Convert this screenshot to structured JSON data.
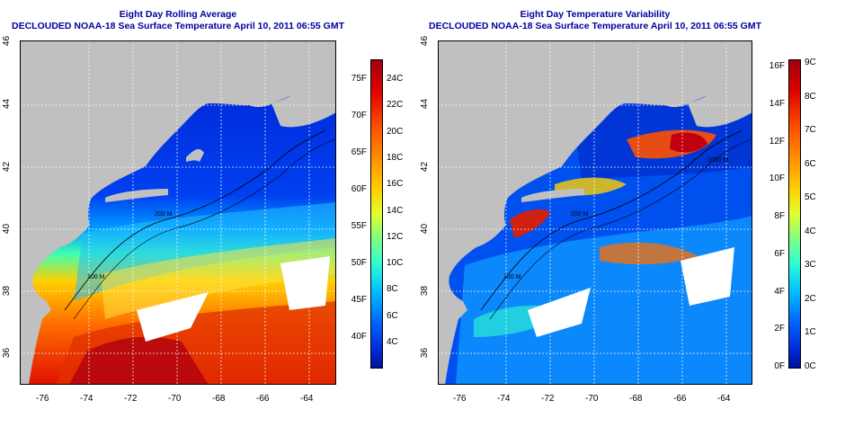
{
  "panels": [
    {
      "title": "Eight Day Rolling Average",
      "subtitle": "DECLOUDED NOAA-18 Sea Surface Temperature April 10, 2011 06:55 GMT",
      "colorbar": {
        "f_labels": [
          "75F",
          "70F",
          "65F",
          "60F",
          "55F",
          "50F",
          "45F",
          "40F"
        ],
        "c_labels": [
          "24C",
          "22C",
          "20C",
          "18C",
          "16C",
          "14C",
          "12C",
          "10C",
          "8C",
          "6C",
          "4C"
        ],
        "colors": [
          "#a00010",
          "#e00000",
          "#ff5000",
          "#ff9000",
          "#ffd000",
          "#e0ff30",
          "#80ff80",
          "#30ffd0",
          "#00c0ff",
          "#0070ff",
          "#0030e0",
          "#0010a0"
        ]
      }
    },
    {
      "title": "Eight Day Temperature Variability",
      "subtitle": "DECLOUDED NOAA-18 Sea Surface Temperature April 10, 2011 06:55 GMT",
      "colorbar": {
        "f_labels": [
          "16F",
          "14F",
          "12F",
          "10F",
          "8F",
          "6F",
          "4F",
          "2F",
          "0F"
        ],
        "c_labels": [
          "9C",
          "8C",
          "7C",
          "6C",
          "5C",
          "4C",
          "3C",
          "2C",
          "1C",
          "0C"
        ],
        "colors": [
          "#a00010",
          "#e00000",
          "#ff5000",
          "#ff9000",
          "#ffd000",
          "#e0ff30",
          "#80ff80",
          "#30ffd0",
          "#00c0ff",
          "#0070ff",
          "#0030e0",
          "#0010a0"
        ]
      }
    }
  ],
  "axes": {
    "lon_ticks": [
      "-76",
      "-74",
      "-72",
      "-70",
      "-68",
      "-66",
      "-64"
    ],
    "lat_ticks": [
      "46",
      "44",
      "42",
      "40",
      "38",
      "36"
    ]
  },
  "map_labels": {
    "isobath_left": [
      "200 M",
      "100 M"
    ],
    "isobath_right": [
      "200 M",
      "100 M",
      "1000 M"
    ]
  },
  "colors": {
    "land": "#c0c0c0",
    "title_blue": "#0000a0"
  }
}
